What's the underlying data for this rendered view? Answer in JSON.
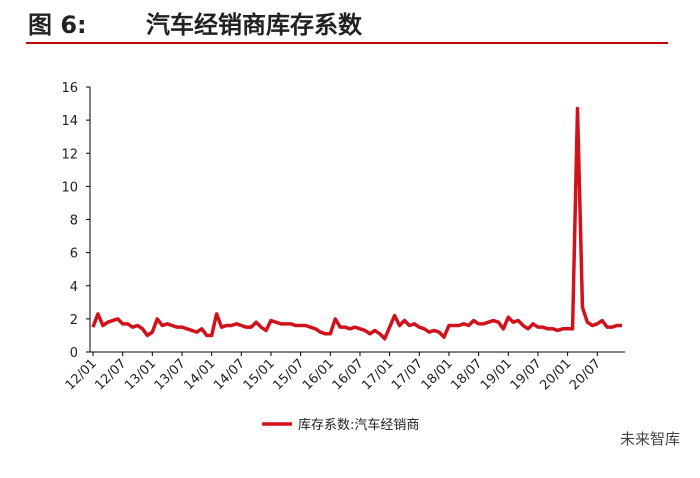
{
  "chart_data": {
    "type": "line",
    "figure_label": "图 6:",
    "title": "汽车经销商库存系数",
    "watermark": "未来智库",
    "categories": [
      "12/01",
      null,
      null,
      null,
      null,
      null,
      "12/07",
      null,
      null,
      null,
      null,
      null,
      "13/01",
      null,
      null,
      null,
      null,
      null,
      "13/07",
      null,
      null,
      null,
      null,
      null,
      "14/01",
      null,
      null,
      null,
      null,
      null,
      "14/07",
      null,
      null,
      null,
      null,
      null,
      "15/01",
      null,
      null,
      null,
      null,
      null,
      "15/07",
      null,
      null,
      null,
      null,
      null,
      "16/01",
      null,
      null,
      null,
      null,
      null,
      "16/07",
      null,
      null,
      null,
      null,
      null,
      "17/01",
      null,
      null,
      null,
      null,
      null,
      "17/07",
      null,
      null,
      null,
      null,
      null,
      "18/01",
      null,
      null,
      null,
      null,
      null,
      "18/07",
      null,
      null,
      null,
      null,
      null,
      "19/01",
      null,
      null,
      null,
      null,
      null,
      "19/07",
      null,
      null,
      null,
      null,
      null,
      "20/01",
      null,
      null,
      null,
      null,
      null,
      "20/07",
      null,
      null,
      null,
      null,
      null
    ],
    "series": [
      {
        "name": "库存系数:汽车经销商",
        "color": "#d0121b",
        "values": [
          1.5,
          2.3,
          1.6,
          1.8,
          1.9,
          2.0,
          1.7,
          1.7,
          1.5,
          1.6,
          1.4,
          1.0,
          1.2,
          2.0,
          1.6,
          1.7,
          1.6,
          1.5,
          1.5,
          1.4,
          1.3,
          1.2,
          1.4,
          1.0,
          1.0,
          2.3,
          1.5,
          1.6,
          1.6,
          1.7,
          1.6,
          1.5,
          1.5,
          1.8,
          1.5,
          1.3,
          1.9,
          1.8,
          1.7,
          1.7,
          1.7,
          1.6,
          1.6,
          1.6,
          1.5,
          1.4,
          1.2,
          1.1,
          1.1,
          2.0,
          1.5,
          1.5,
          1.4,
          1.5,
          1.4,
          1.3,
          1.1,
          1.3,
          1.1,
          0.8,
          1.5,
          2.2,
          1.6,
          1.9,
          1.6,
          1.7,
          1.5,
          1.4,
          1.2,
          1.3,
          1.2,
          0.9,
          1.6,
          1.6,
          1.6,
          1.7,
          1.6,
          1.9,
          1.7,
          1.7,
          1.8,
          1.9,
          1.8,
          1.4,
          2.1,
          1.8,
          1.9,
          1.6,
          1.4,
          1.7,
          1.5,
          1.5,
          1.4,
          1.4,
          1.3,
          1.4,
          1.4,
          1.4,
          14.7,
          2.7,
          1.8,
          1.6,
          1.7,
          1.9,
          1.5,
          1.5,
          1.6,
          1.6
        ]
      }
    ],
    "ylim": [
      0,
      16
    ],
    "yticks": [
      0,
      2,
      4,
      6,
      8,
      10,
      12,
      14,
      16
    ],
    "grid": false
  }
}
